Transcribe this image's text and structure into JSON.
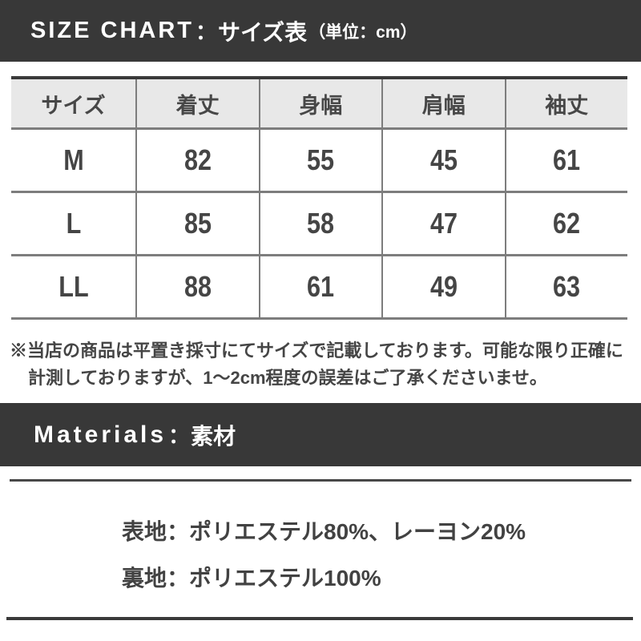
{
  "size_chart": {
    "header": {
      "title_en": "SIZE CHART",
      "separator": "：",
      "title_ja": "サイズ表",
      "unit_note": "（単位：cm）"
    },
    "table": {
      "columns": [
        "サイズ",
        "着丈",
        "身幅",
        "肩幅",
        "袖丈"
      ],
      "rows": [
        {
          "size": "M",
          "values": [
            "82",
            "55",
            "45",
            "61"
          ]
        },
        {
          "size": "L",
          "values": [
            "85",
            "58",
            "47",
            "62"
          ]
        },
        {
          "size": "LL",
          "values": [
            "88",
            "61",
            "49",
            "63"
          ]
        }
      ],
      "unit": "cm"
    },
    "note_line1": "※当店の商品は平置き採寸にてサイズで記載しております。可能な限り正確に",
    "note_line2": "計測しておりますが、1〜2cm程度の誤差はご了承くださいませ。"
  },
  "materials": {
    "header": {
      "title_en": "Materials",
      "separator": "：",
      "title_ja": "素材"
    },
    "lines": [
      "表地：ポリエステル80%、レーヨン20%",
      "裏地：ポリエステル100%"
    ]
  },
  "colors": {
    "bar_background": "#383838",
    "table_header_background": "#e8e8e8",
    "border_gray": "#7d7d7d",
    "text_dark": "#454545"
  }
}
